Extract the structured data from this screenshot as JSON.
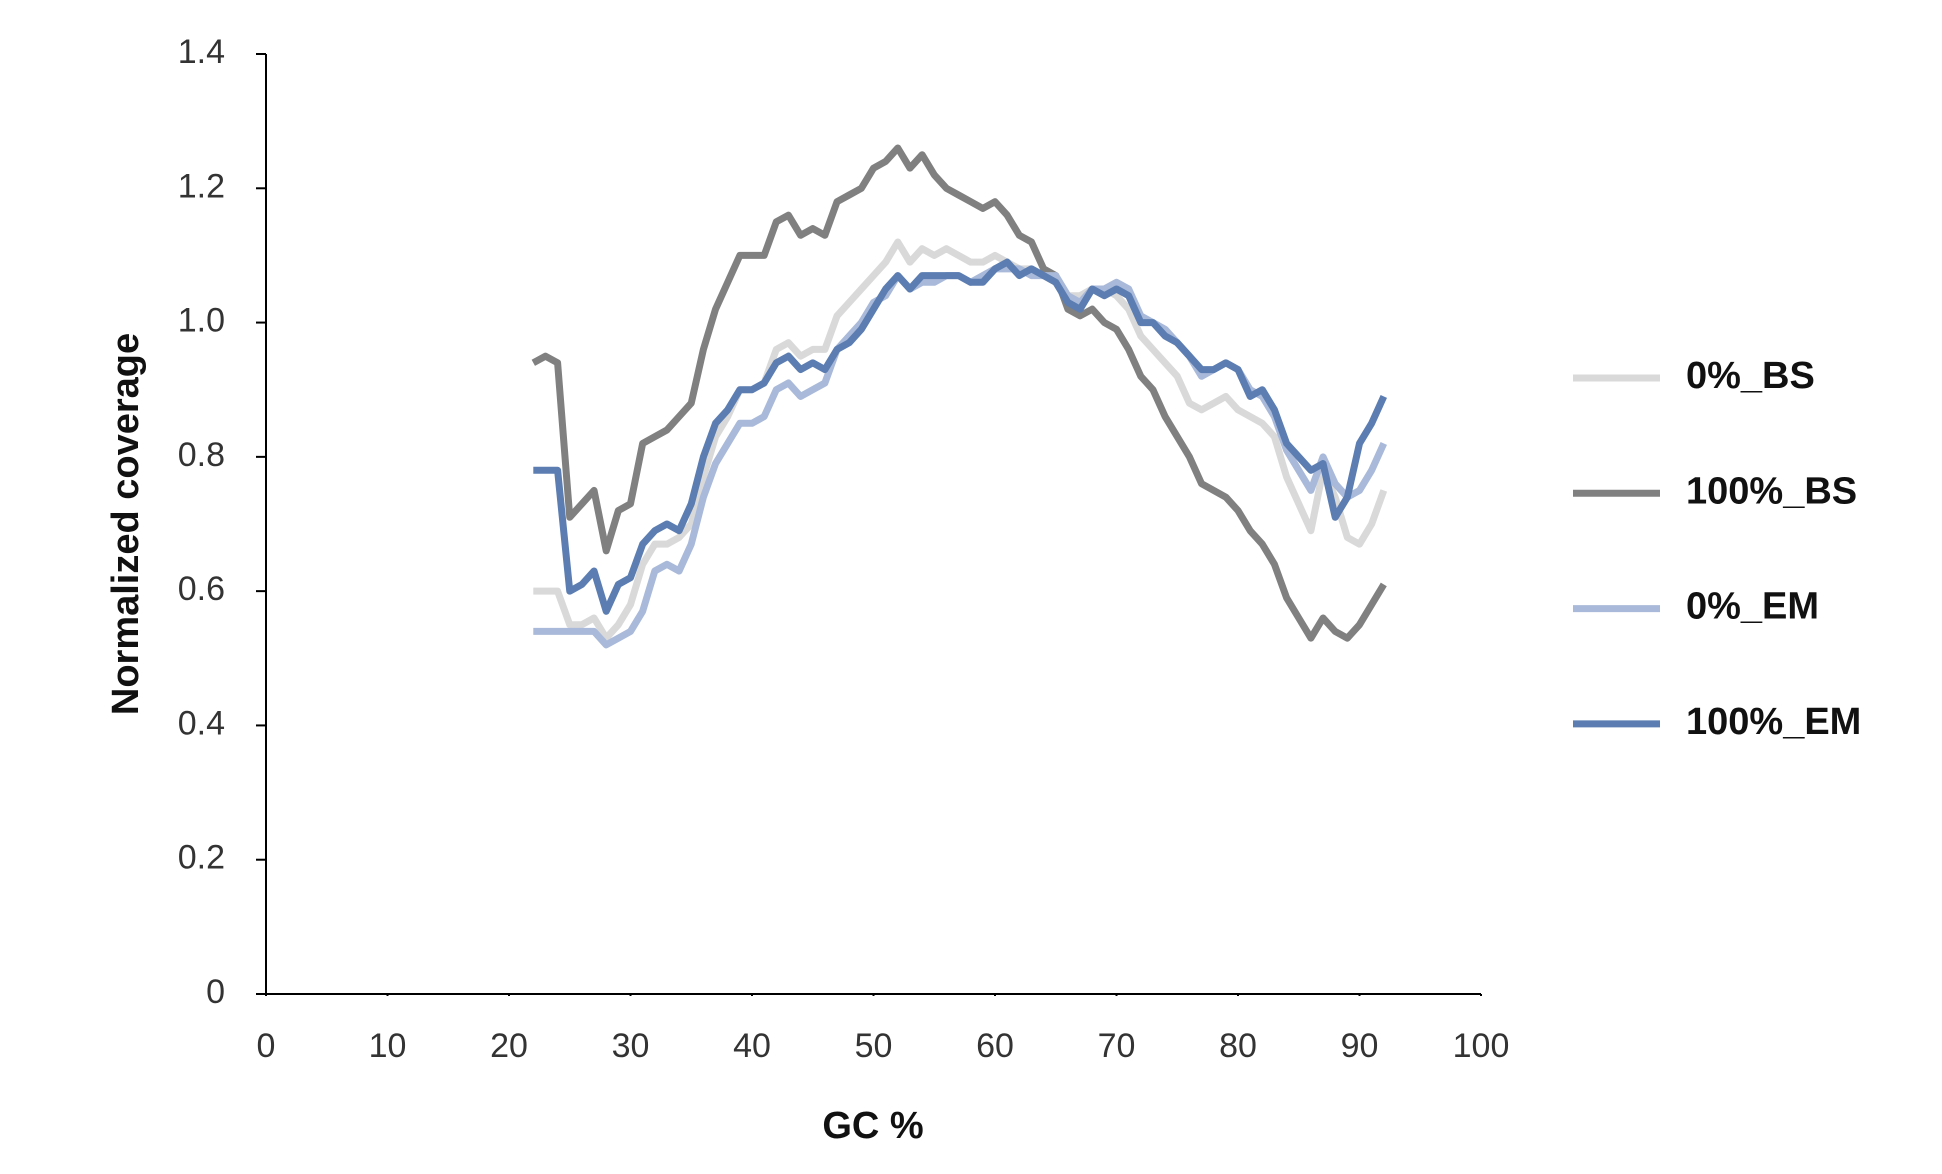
{
  "chart_data": {
    "type": "line",
    "xlabel": "GC %",
    "ylabel": "Normalized coverage",
    "x": [
      22,
      23,
      24,
      25,
      26,
      27,
      28,
      29,
      30,
      31,
      32,
      33,
      34,
      35,
      36,
      37,
      38,
      39,
      40,
      41,
      42,
      43,
      44,
      45,
      46,
      47,
      48,
      49,
      50,
      51,
      52,
      53,
      54,
      55,
      56,
      57,
      58,
      59,
      60,
      61,
      62,
      63,
      64,
      65,
      66,
      67,
      68,
      69,
      70,
      71,
      72,
      73,
      74,
      75,
      76,
      77,
      78,
      79,
      80,
      81,
      82,
      83,
      84,
      85,
      86,
      87,
      88,
      89,
      90,
      91,
      92
    ],
    "series": [
      {
        "name": "0%_BS",
        "color": "#d9d9d9",
        "values": [
          0.6,
          0.6,
          0.6,
          0.55,
          0.55,
          0.56,
          0.53,
          0.55,
          0.58,
          0.64,
          0.67,
          0.67,
          0.68,
          0.7,
          0.77,
          0.83,
          0.86,
          0.9,
          0.9,
          0.91,
          0.96,
          0.97,
          0.95,
          0.96,
          0.96,
          1.01,
          1.03,
          1.05,
          1.07,
          1.09,
          1.12,
          1.09,
          1.11,
          1.1,
          1.11,
          1.1,
          1.09,
          1.09,
          1.1,
          1.09,
          1.08,
          1.08,
          1.07,
          1.06,
          1.04,
          1.04,
          1.05,
          1.05,
          1.04,
          1.02,
          0.98,
          0.96,
          0.94,
          0.92,
          0.88,
          0.87,
          0.88,
          0.89,
          0.87,
          0.86,
          0.85,
          0.83,
          0.77,
          0.73,
          0.69,
          0.78,
          0.74,
          0.68,
          0.67,
          0.7,
          0.75
        ]
      },
      {
        "name": "100%_BS",
        "color": "#808080",
        "values": [
          0.94,
          0.95,
          0.94,
          0.71,
          0.73,
          0.75,
          0.66,
          0.72,
          0.73,
          0.82,
          0.83,
          0.84,
          0.86,
          0.88,
          0.96,
          1.02,
          1.06,
          1.1,
          1.1,
          1.1,
          1.15,
          1.16,
          1.13,
          1.14,
          1.13,
          1.18,
          1.19,
          1.2,
          1.23,
          1.24,
          1.26,
          1.23,
          1.25,
          1.22,
          1.2,
          1.19,
          1.18,
          1.17,
          1.18,
          1.16,
          1.13,
          1.12,
          1.08,
          1.07,
          1.02,
          1.01,
          1.02,
          1.0,
          0.99,
          0.96,
          0.92,
          0.9,
          0.86,
          0.83,
          0.8,
          0.76,
          0.75,
          0.74,
          0.72,
          0.69,
          0.67,
          0.64,
          0.59,
          0.56,
          0.53,
          0.56,
          0.54,
          0.53,
          0.55,
          0.58,
          0.61
        ]
      },
      {
        "name": "0%_EM",
        "color": "#a9b9d9",
        "values": [
          0.54,
          0.54,
          0.54,
          0.54,
          0.54,
          0.54,
          0.52,
          0.53,
          0.54,
          0.57,
          0.63,
          0.64,
          0.63,
          0.67,
          0.74,
          0.79,
          0.82,
          0.85,
          0.85,
          0.86,
          0.9,
          0.91,
          0.89,
          0.9,
          0.91,
          0.96,
          0.98,
          1.0,
          1.03,
          1.04,
          1.07,
          1.05,
          1.06,
          1.06,
          1.07,
          1.07,
          1.06,
          1.07,
          1.08,
          1.08,
          1.08,
          1.07,
          1.07,
          1.07,
          1.04,
          1.03,
          1.05,
          1.05,
          1.06,
          1.05,
          1.01,
          1.0,
          0.99,
          0.97,
          0.95,
          0.92,
          0.93,
          0.94,
          0.93,
          0.9,
          0.89,
          0.86,
          0.81,
          0.78,
          0.75,
          0.8,
          0.76,
          0.74,
          0.75,
          0.78,
          0.82
        ]
      },
      {
        "name": "100%_EM",
        "color": "#5b7db1",
        "values": [
          0.78,
          0.78,
          0.78,
          0.6,
          0.61,
          0.63,
          0.57,
          0.61,
          0.62,
          0.67,
          0.69,
          0.7,
          0.69,
          0.73,
          0.8,
          0.85,
          0.87,
          0.9,
          0.9,
          0.91,
          0.94,
          0.95,
          0.93,
          0.94,
          0.93,
          0.96,
          0.97,
          0.99,
          1.02,
          1.05,
          1.07,
          1.05,
          1.07,
          1.07,
          1.07,
          1.07,
          1.06,
          1.06,
          1.08,
          1.09,
          1.07,
          1.08,
          1.07,
          1.06,
          1.03,
          1.02,
          1.05,
          1.04,
          1.05,
          1.04,
          1.0,
          1.0,
          0.98,
          0.97,
          0.95,
          0.93,
          0.93,
          0.94,
          0.93,
          0.89,
          0.9,
          0.87,
          0.82,
          0.8,
          0.78,
          0.79,
          0.71,
          0.74,
          0.82,
          0.85,
          0.89
        ]
      }
    ],
    "xlim": [
      0,
      100
    ],
    "xticks": [
      0,
      10,
      20,
      30,
      40,
      50,
      60,
      70,
      80,
      90,
      100
    ],
    "ylim": [
      0,
      1.4
    ],
    "yticks": [
      0,
      0.2,
      0.4,
      0.6,
      0.8,
      {
        "value": 1,
        "label": "1.0"
      },
      1.2,
      1.4
    ],
    "legend": "right",
    "grid": false
  }
}
